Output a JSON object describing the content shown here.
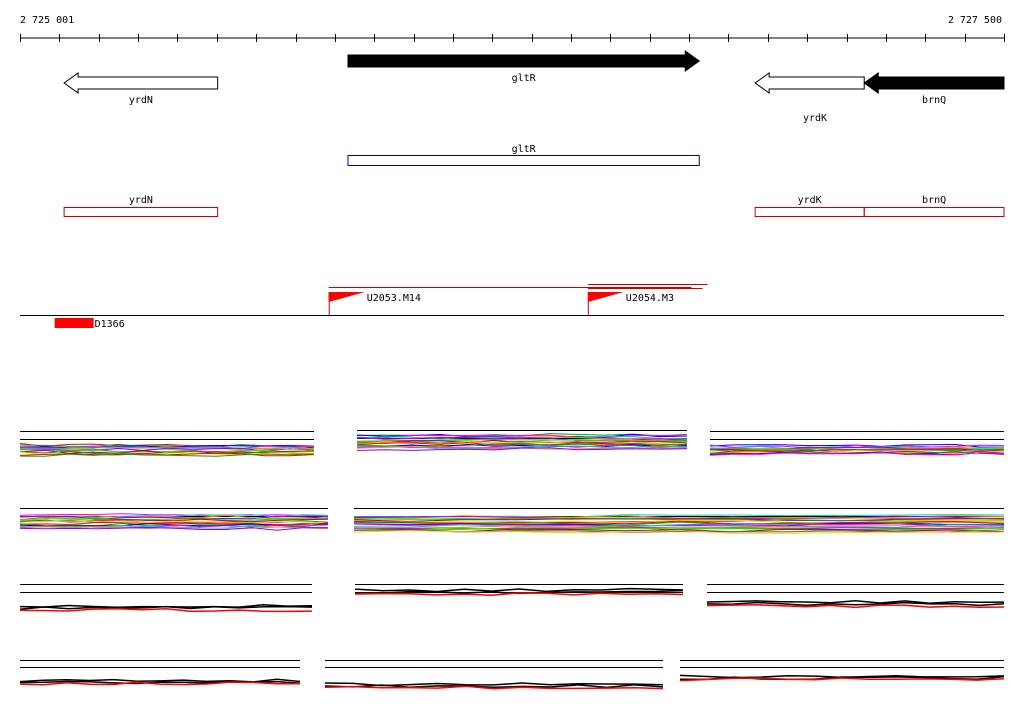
{
  "ruler": {
    "start_label": "2 725 001",
    "end_label": "2 727 500",
    "start": 2725001,
    "end": 2727500
  },
  "genes": [
    {
      "name": "yrdN",
      "start": 2725113,
      "end": 2725503,
      "strand": "-",
      "filled": false,
      "label_pos": "below"
    },
    {
      "name": "gltR",
      "start": 2725834,
      "end": 2726726,
      "strand": "+",
      "filled": true,
      "label_pos": "below"
    },
    {
      "name": "yrdK",
      "start": 2726868,
      "end": 2727145,
      "strand": "-",
      "filled": false,
      "label_pos": "below-offset"
    },
    {
      "name": "brnQ",
      "start": 2727145,
      "end": 2727500,
      "strand": "-",
      "filled": true,
      "label_pos": "below"
    }
  ],
  "blue_track": [
    {
      "name": "gltR",
      "start": 2725834,
      "end": 2726726
    }
  ],
  "red_track": [
    {
      "name": "yrdN",
      "start": 2725113,
      "end": 2725503
    },
    {
      "name": "yrdK",
      "start": 2726868,
      "end": 2727145
    },
    {
      "name": "brnQ",
      "start": 2727145,
      "end": 2727500
    }
  ],
  "transcription_units": [
    {
      "name": "U2053.M14",
      "start": 2725785,
      "end": 2726706
    },
    {
      "name": "U2054.M3",
      "start": 2726443,
      "end": 2726747
    }
  ],
  "features": [
    {
      "name": "D1366",
      "start": 2725089,
      "end": 2725188
    }
  ],
  "line_colors": [
    "#ff0000",
    "#00aa00",
    "#0000ff",
    "#ff00ff",
    "#00cccc",
    "#ff8800",
    "#8800ff",
    "#888800",
    "#00ff00",
    "#aa0055",
    "#666666",
    "#ffcc00"
  ]
}
